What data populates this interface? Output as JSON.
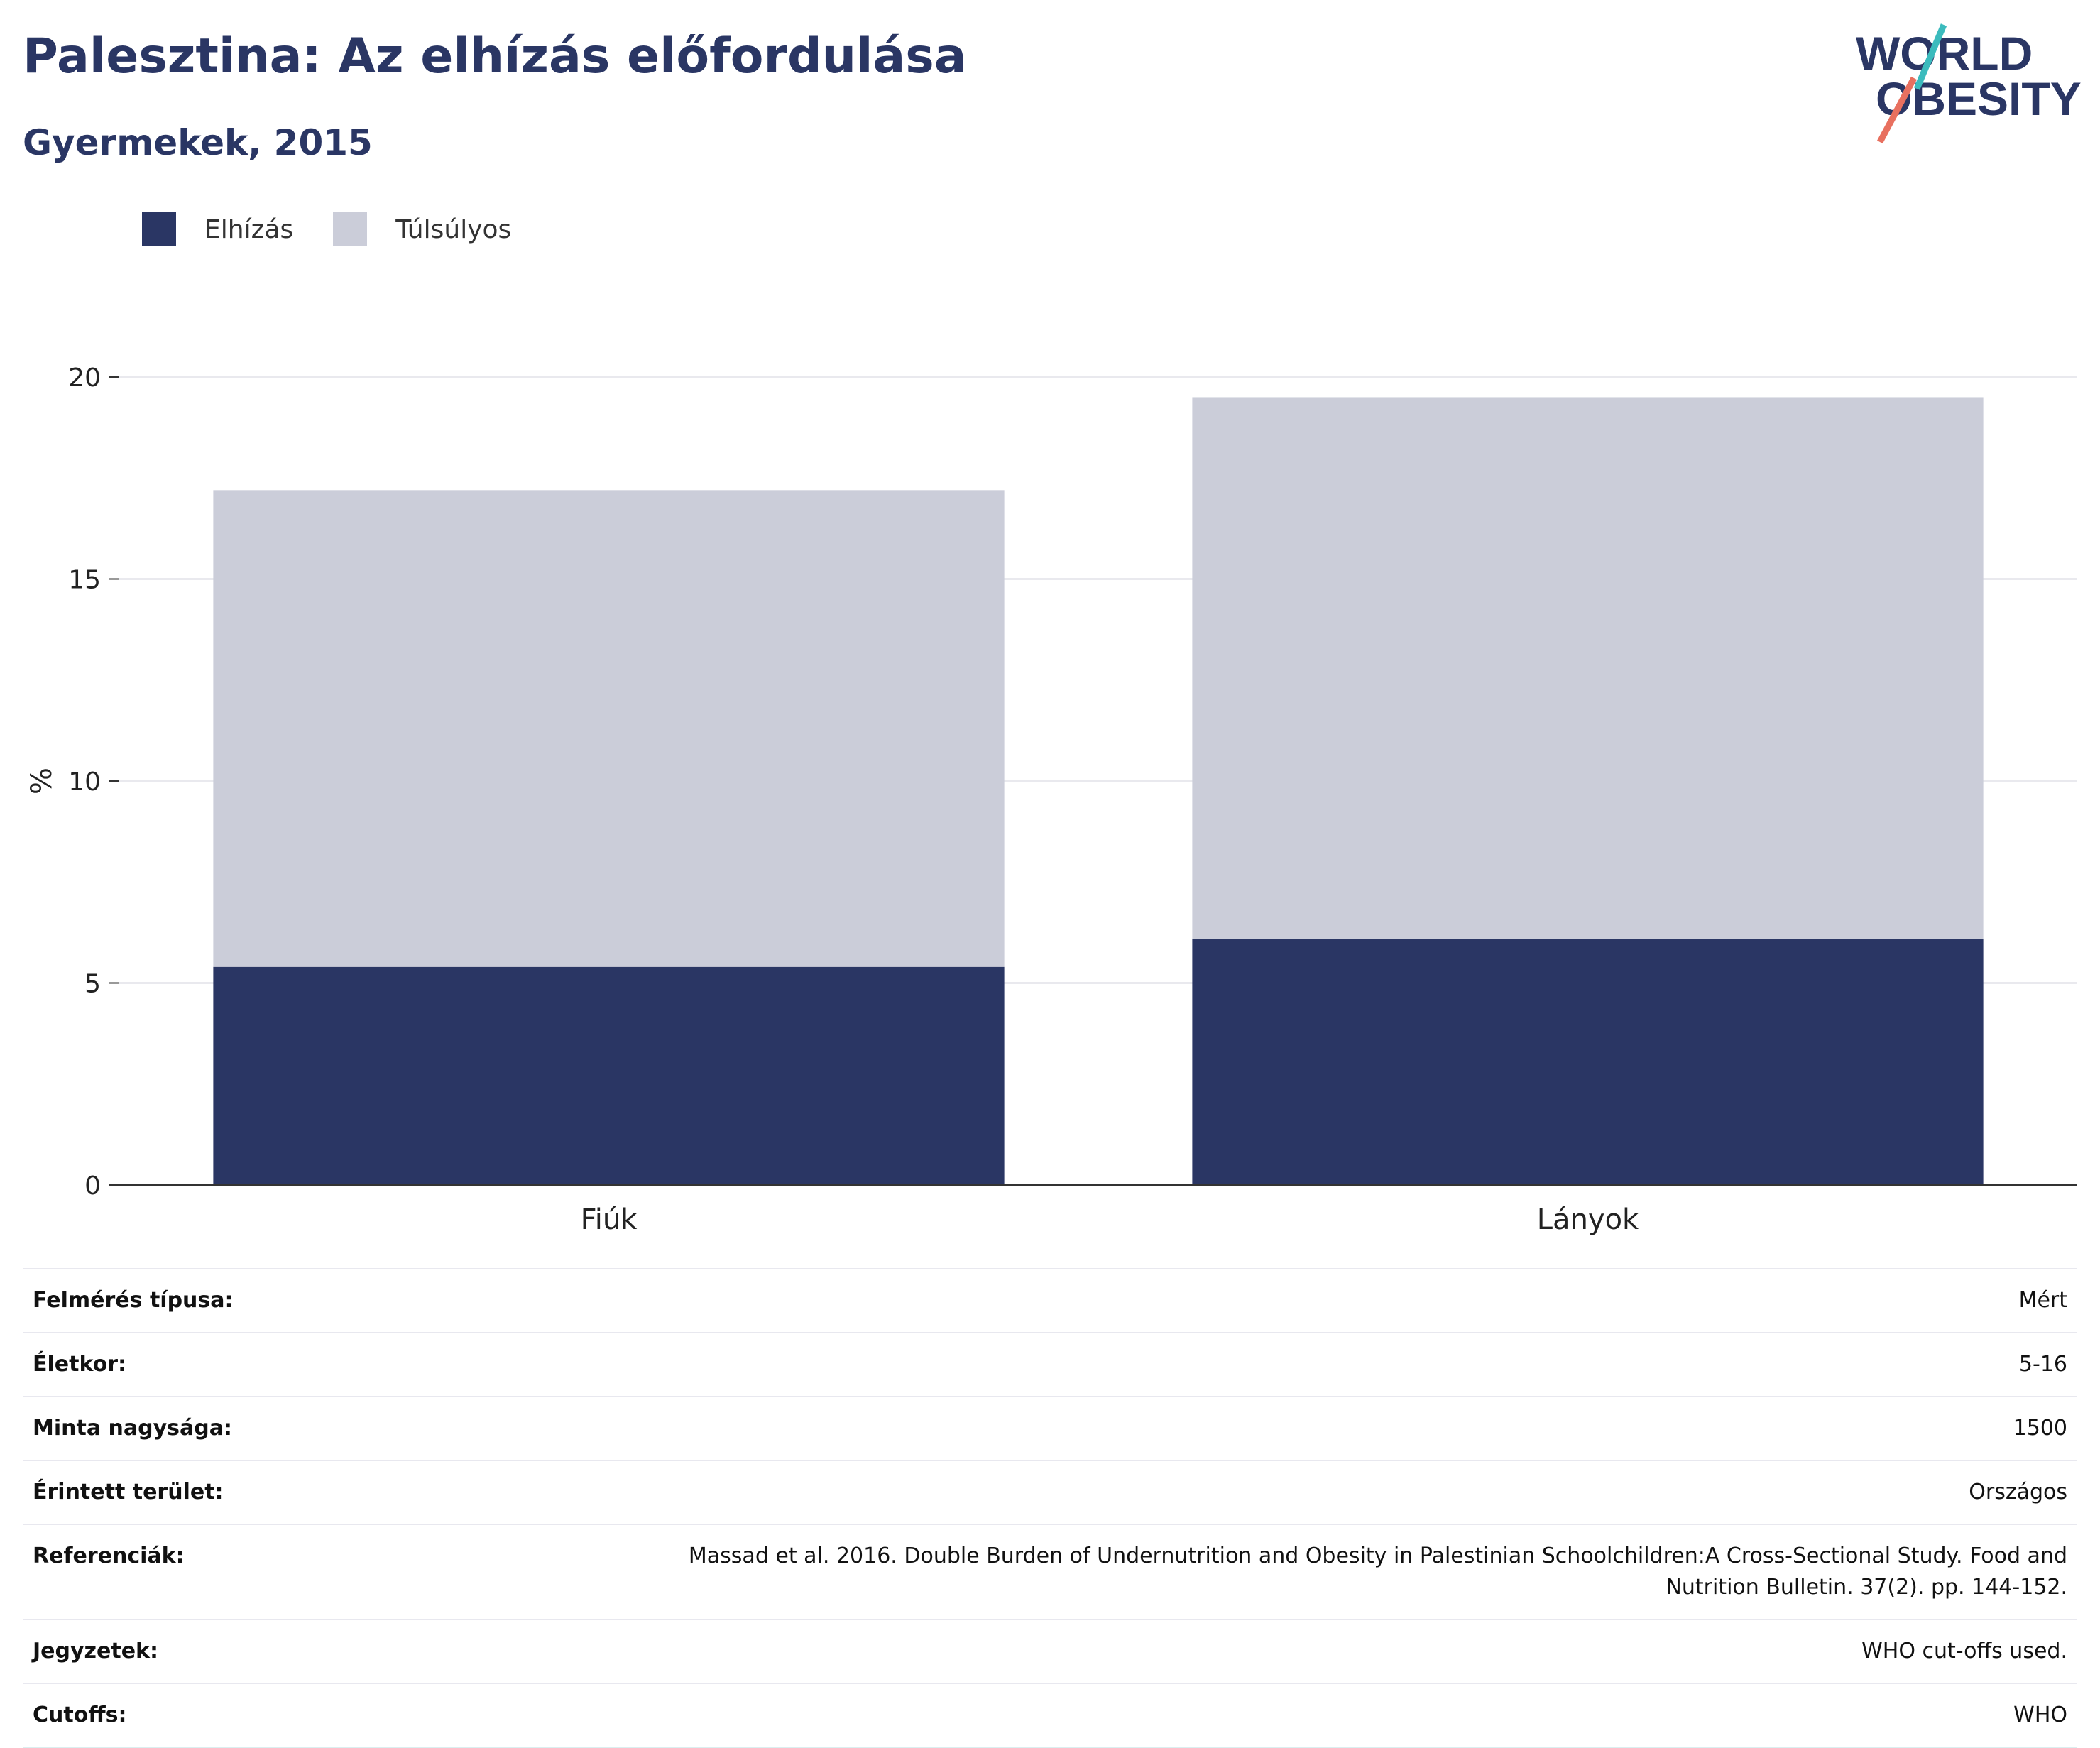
{
  "header": {
    "title": "Palesztina: Az elhízás előfordulása",
    "subtitle": "Gyermekek, 2015"
  },
  "logo": {
    "line1": "WORLD",
    "line2": "OBESITY"
  },
  "colors": {
    "obesity": "#2a3664",
    "overweight": "#cbcdd9",
    "title": "#2a3664",
    "logo_teal": "#3bbbbd",
    "logo_coral": "#e8705f",
    "grid": "#e9e9ee",
    "axis": "#333333"
  },
  "legend": {
    "items": [
      {
        "label": "Elhízás",
        "color": "#2a3664"
      },
      {
        "label": "Túlsúlyos",
        "color": "#cbcdd9"
      }
    ]
  },
  "chart_data": {
    "type": "bar",
    "stacked": true,
    "title": "Palesztina: Az elhízás előfordulása",
    "subtitle": "Gyermekek, 2015",
    "xlabel": "",
    "ylabel": "%",
    "categories": [
      "Fiúk",
      "Lányok"
    ],
    "series": [
      {
        "name": "Elhízás",
        "values": [
          5.4,
          6.1
        ]
      },
      {
        "name": "Túlsúlyos",
        "values": [
          11.8,
          13.4
        ]
      }
    ],
    "ylim": [
      0,
      20
    ],
    "yticks": [
      0,
      5,
      10,
      15,
      20
    ],
    "grid": true,
    "legend_position": "top-left"
  },
  "metadata": {
    "rows": [
      {
        "key": "Felmérés típusa:",
        "value": "Mért"
      },
      {
        "key": "Életkor:",
        "value": "5-16"
      },
      {
        "key": "Minta nagysága:",
        "value": "1500"
      },
      {
        "key": "Érintett terület:",
        "value": "Országos"
      },
      {
        "key": "Referenciák:",
        "value": "Massad et al. 2016. Double Burden of Undernutrition and Obesity in Palestinian Schoolchildren:A Cross-Sectional Study. Food and Nutrition Bulletin. 37(2). pp. 144-152."
      },
      {
        "key": "Jegyzetek:",
        "value": "WHO cut-offs used."
      },
      {
        "key": "Cutoffs:",
        "value": "WHO"
      }
    ]
  }
}
